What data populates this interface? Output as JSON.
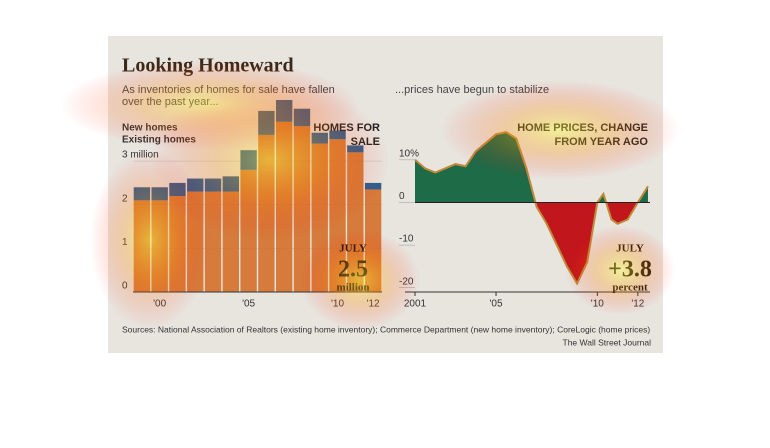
{
  "title": "Looking Homeward",
  "source": "Sources: National Association of Realtors (existing home inventory); Commerce Department (new home inventory); CoreLogic (home prices)",
  "credit": "The Wall Street Journal",
  "chart_data": [
    {
      "type": "bar",
      "stacked": true,
      "subtitle": [
        "As inventories of homes for sale have fallen",
        "over the past year..."
      ],
      "label": [
        "HOMES FOR",
        "SALE"
      ],
      "annotation": [
        "JULY",
        "2.5",
        "million"
      ],
      "categories": [
        null,
        "'00",
        null,
        null,
        null,
        null,
        "'05",
        null,
        null,
        null,
        null,
        "'10",
        null,
        "'12"
      ],
      "series": [
        {
          "name": "Existing homes",
          "color": "#d2691e",
          "values": [
            2.1,
            2.1,
            2.2,
            2.3,
            2.3,
            2.3,
            2.8,
            3.6,
            3.9,
            3.8,
            3.4,
            3.5,
            3.2,
            2.35
          ]
        },
        {
          "name": "New homes",
          "color": "#2f5f8f",
          "values": [
            0.3,
            0.3,
            0.3,
            0.3,
            0.3,
            0.35,
            0.45,
            0.55,
            0.5,
            0.4,
            0.25,
            0.2,
            0.16,
            0.15
          ]
        }
      ],
      "ylim": [
        0,
        4.4
      ],
      "yticks": [
        0,
        1,
        2,
        {
          "value": 3,
          "label": "3 million"
        }
      ],
      "grid": true
    },
    {
      "type": "area",
      "subtitle": "...prices have begun to stabilize",
      "label": [
        "HOME PRICES, CHANGE",
        "FROM YEAR AGO"
      ],
      "annotation": [
        "JULY",
        "+3.8",
        "percent"
      ],
      "x": [
        2001,
        2001.5,
        2002,
        2003,
        2003.5,
        2004,
        2005,
        2005.5,
        2006,
        2006.5,
        2007,
        2007.5,
        2008,
        2008.5,
        2009,
        2009.5,
        2010,
        2010.3,
        2010.7,
        2011,
        2011.5,
        2012,
        2012.5
      ],
      "values": [
        10,
        8,
        7,
        9,
        8.5,
        12,
        16,
        16.5,
        15,
        8,
        -1,
        -5,
        -10,
        -15,
        -19,
        -14,
        0,
        2,
        -4,
        -5,
        -4,
        0,
        3.8
      ],
      "colors": {
        "positive": "#1e6b48",
        "negative": "#c0161c",
        "line": "#c08a3a"
      },
      "xlim": [
        2001,
        2012.6
      ],
      "xticks": [
        2001,
        {
          "value": 2005,
          "label": "'05"
        },
        {
          "value": 2010,
          "label": "'10"
        },
        {
          "value": 2012,
          "label": "'12"
        }
      ],
      "ylim": [
        -21,
        17
      ],
      "yticks": [
        {
          "value": 10,
          "label": "10%"
        },
        0,
        -10,
        -20
      ]
    }
  ]
}
